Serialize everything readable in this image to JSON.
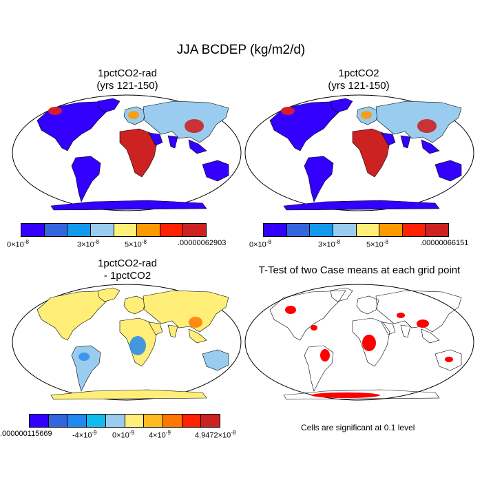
{
  "figure": {
    "title": "JJA BCDEP (kg/m2/d)"
  },
  "panels": {
    "p1": {
      "title_line1": "1pctCO2-rad",
      "title_line2": "(yrs 121-150)"
    },
    "p2": {
      "title_line1": "1pctCO2",
      "title_line2": "(yrs 121-150)"
    },
    "p3": {
      "title_line1": "1pctCO2-rad",
      "title_line2": "- 1pctCO2"
    },
    "p4": {
      "title_line1": "T-Test of two Case means at each grid point",
      "note": "Cells are significant at 0.1 level"
    }
  },
  "colorbars": {
    "cb1": {
      "colors": [
        "#3300ff",
        "#3366dd",
        "#1199ee",
        "#99ccee",
        "#ffee77",
        "#ff9900",
        "#ff2200",
        "#cc2222"
      ],
      "labels": {
        "l0_base": "0×10",
        "l0_exp": "-8",
        "l1_base": "3×10",
        "l1_exp": "-8",
        "l2_base": "5×10",
        "l2_exp": "-8",
        "l3": ".00000062903"
      }
    },
    "cb2": {
      "colors": [
        "#3300ff",
        "#3366dd",
        "#1199ee",
        "#99ccee",
        "#ffee77",
        "#ff9900",
        "#ff2200",
        "#cc2222"
      ],
      "labels": {
        "l0_base": "0×10",
        "l0_exp": "-8",
        "l1_base": "3×10",
        "l1_exp": "-8",
        "l2_base": "5×10",
        "l2_exp": "-8",
        "l3": ".00000066151"
      }
    },
    "cb3": {
      "colors": [
        "#3300ff",
        "#3366dd",
        "#2288ee",
        "#11bbee",
        "#99ccee",
        "#ffee77",
        "#ffbb22",
        "#ff7700",
        "#ff2200",
        "#cc2222"
      ],
      "labels": {
        "l0": ".000000115669",
        "l1_base": "-4×10",
        "l1_exp": "-9",
        "l2_base": "0×10",
        "l2_exp": "-9",
        "l3_base": "4×10",
        "l3_exp": "-9",
        "l4_base": "4.9472×10",
        "l4_exp": "-8"
      }
    }
  },
  "map_colors": {
    "ocean": "#ffffff",
    "outline": "#000000",
    "low": "#3300ff",
    "mid": "#99ccee",
    "high": "#cc2222",
    "diff_pos": "#ffee77",
    "diff_neg": "#2288ee",
    "significant": "#ff0000"
  }
}
